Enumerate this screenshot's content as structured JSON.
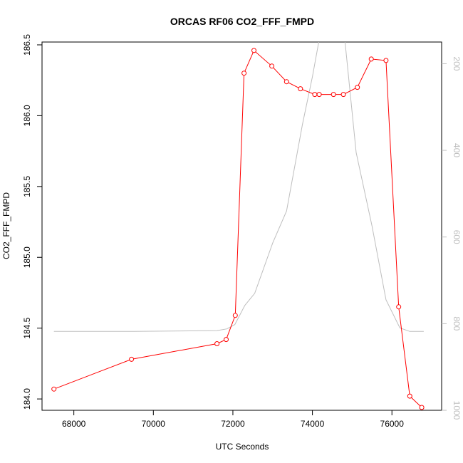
{
  "chart_data": {
    "type": "line",
    "title": "ORCAS RF06 CO2_FFF_FMPD",
    "xlabel": "UTC Seconds",
    "ylabel": "CO2_FFF_FMPD",
    "xlim": [
      67250,
      67000
    ],
    "ylim": [
      183.92,
      186.52
    ],
    "y2lim": [
      1000,
      150
    ],
    "y2_reversed": true,
    "xticks": [
      68000,
      70000,
      72000,
      74000,
      76000
    ],
    "yticks": [
      184.0,
      184.5,
      185.0,
      185.5,
      186.0,
      186.5
    ],
    "ytick_labels": [
      "184.0",
      "184.5",
      "185.0",
      "185.5",
      "186.0",
      "186.5"
    ],
    "y2ticks": [
      200,
      400,
      600,
      800,
      1000
    ],
    "series": [
      {
        "axis": "left",
        "color": "#ff0000",
        "markers": "open-circle",
        "points": [
          [
            67500,
            184.07
          ],
          [
            69450,
            184.28
          ],
          [
            71600,
            184.39
          ],
          [
            71830,
            184.42
          ],
          [
            72060,
            184.59
          ],
          [
            72280,
            186.3
          ],
          [
            72530,
            186.46
          ],
          [
            72980,
            186.35
          ],
          [
            73350,
            186.24
          ],
          [
            73700,
            186.19
          ],
          [
            74060,
            186.15
          ],
          [
            74170,
            186.15
          ],
          [
            74530,
            186.15
          ],
          [
            74780,
            186.15
          ],
          [
            75130,
            186.2
          ],
          [
            75480,
            186.4
          ],
          [
            75850,
            186.39
          ],
          [
            76170,
            184.65
          ],
          [
            76450,
            184.02
          ],
          [
            76750,
            183.94
          ]
        ]
      },
      {
        "axis": "right",
        "color": "#bebebe",
        "markers": "none",
        "points": [
          [
            67500,
            818
          ],
          [
            69500,
            818
          ],
          [
            71600,
            816
          ],
          [
            71850,
            812
          ],
          [
            72050,
            802
          ],
          [
            72300,
            758
          ],
          [
            72550,
            730
          ],
          [
            73000,
            614
          ],
          [
            73350,
            540
          ],
          [
            73750,
            340
          ],
          [
            74000,
            230
          ],
          [
            74200,
            130
          ],
          [
            74500,
            80
          ],
          [
            74800,
            130
          ],
          [
            75100,
            405
          ],
          [
            75500,
            575
          ],
          [
            75850,
            745
          ],
          [
            76200,
            810
          ],
          [
            76450,
            818
          ],
          [
            76800,
            818
          ]
        ]
      }
    ]
  }
}
